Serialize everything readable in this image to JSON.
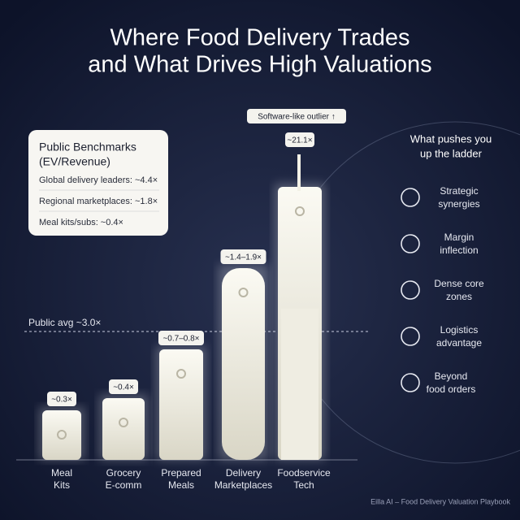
{
  "header": {
    "title_lines": [
      "Where Food Delivery Trades",
      "and What Drives High Valuations"
    ]
  },
  "benchmarks": {
    "title": "Public Benchmarks",
    "subtitle": "(EV/Revenue)",
    "items": [
      "Global delivery leaders: ~4.4×",
      "Regional marketplaces: ~1.8×",
      "Meal kits/subs: ~0.4×"
    ]
  },
  "reference": {
    "label": "Public avg ~3.0×"
  },
  "outlier": {
    "label": "Software-like outlier ↑"
  },
  "buildings": [
    {
      "multiple": "~0.3×",
      "name_lines": [
        "Meal",
        "Kits"
      ]
    },
    {
      "multiple": "~0.4×",
      "name_lines": [
        "Grocery",
        "E-comm"
      ]
    },
    {
      "multiple": "~0.7–0.8×",
      "name_lines": [
        "Prepared",
        "Meals"
      ]
    },
    {
      "multiple": "~1.4–1.9×",
      "name_lines": [
        "Delivery",
        "Marketplaces"
      ]
    },
    {
      "multiple": "~21.1×",
      "name_lines": [
        "Foodservice",
        "Tech"
      ]
    }
  ],
  "drivers": {
    "heading_lines": [
      "What pushes you",
      "up the ladder"
    ],
    "items": [
      [
        "Strategic",
        "synergies"
      ],
      [
        "Margin",
        "inflection"
      ],
      [
        "Dense core",
        "zones"
      ],
      [
        "Logistics",
        "advantage"
      ],
      [
        "Beyond",
        "food orders"
      ]
    ]
  },
  "footer": "Eilla AI – Food Delivery Valuation Playbook"
}
